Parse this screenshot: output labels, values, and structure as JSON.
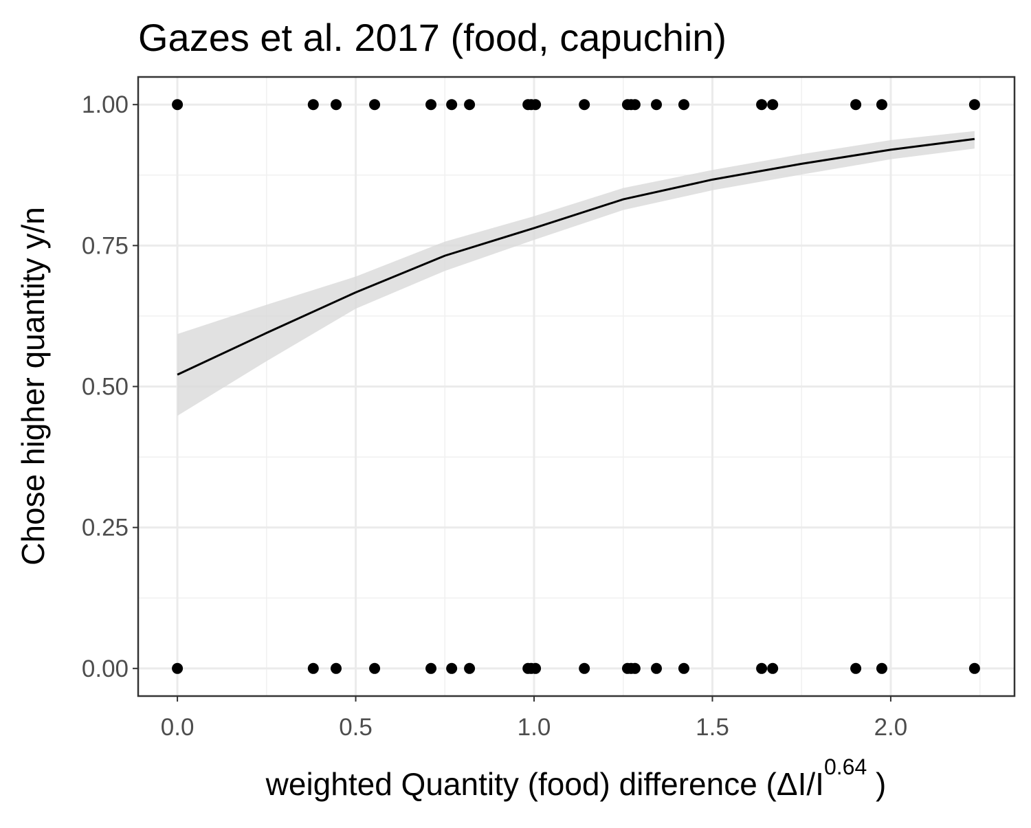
{
  "chart_data": {
    "type": "scatter",
    "title": "Gazes et al. 2017 (food, capuchin)",
    "xlabel": "weighted  Quantity (food)  difference (ΔI/I",
    "xlabel_sup": "0.64",
    "xlabel_end": " )",
    "ylabel": "Chose higher quantity y/n",
    "x": [
      0,
      0.381,
      0.445,
      0.553,
      0.711,
      0.769,
      0.819,
      0.983,
      0.992,
      1.004,
      1.141,
      1.262,
      1.272,
      1.283,
      1.343,
      1.42,
      1.638,
      1.669,
      1.902,
      1.975,
      2.235
    ],
    "series": [
      {
        "color": "#000000",
        "values": [
          1,
          1,
          1,
          1,
          1,
          1,
          1,
          1,
          1,
          1,
          1,
          1,
          1,
          1,
          1,
          1,
          1,
          1,
          1,
          1,
          1
        ]
      },
      {
        "color": "#000000",
        "values": [
          0,
          0,
          0,
          0,
          0,
          0,
          0,
          0,
          0,
          0,
          0,
          0,
          0,
          0,
          0,
          0,
          0,
          0,
          0,
          0,
          0
        ]
      }
    ],
    "fit": {
      "color": "#000000",
      "band_color": "#d9d9d9",
      "x": [
        0,
        0.25,
        0.5,
        0.75,
        1.0,
        1.25,
        1.5,
        1.75,
        2.0,
        2.235
      ],
      "values": [
        0.521,
        0.595,
        0.667,
        0.732,
        0.781,
        0.832,
        0.867,
        0.895,
        0.92,
        0.939
      ],
      "lower": [
        0.448,
        0.545,
        0.638,
        0.705,
        0.76,
        0.813,
        0.848,
        0.876,
        0.903,
        0.922
      ],
      "upper": [
        0.593,
        0.645,
        0.695,
        0.757,
        0.802,
        0.852,
        0.884,
        0.912,
        0.937,
        0.953
      ]
    },
    "xlim": [
      -0.11,
      2.347
    ],
    "ylim": [
      -0.049,
      1.049
    ],
    "xticks": [
      {
        "value": 0,
        "label": "0.0"
      },
      {
        "value": 0.5,
        "label": "0.5"
      },
      {
        "value": 1,
        "label": "1.0"
      },
      {
        "value": 1.5,
        "label": "1.5"
      },
      {
        "value": 2,
        "label": "2.0"
      }
    ],
    "yticks": [
      {
        "value": 0,
        "label": "0.00"
      },
      {
        "value": 0.25,
        "label": "0.25"
      },
      {
        "value": 0.5,
        "label": "0.50"
      },
      {
        "value": 0.75,
        "label": "0.75"
      },
      {
        "value": 1,
        "label": "1.00"
      }
    ],
    "xminor": [
      0.25,
      0.75,
      1.25,
      1.75,
      2.25
    ],
    "yminor": [
      0.125,
      0.375,
      0.625,
      0.875
    ],
    "grid": true
  }
}
